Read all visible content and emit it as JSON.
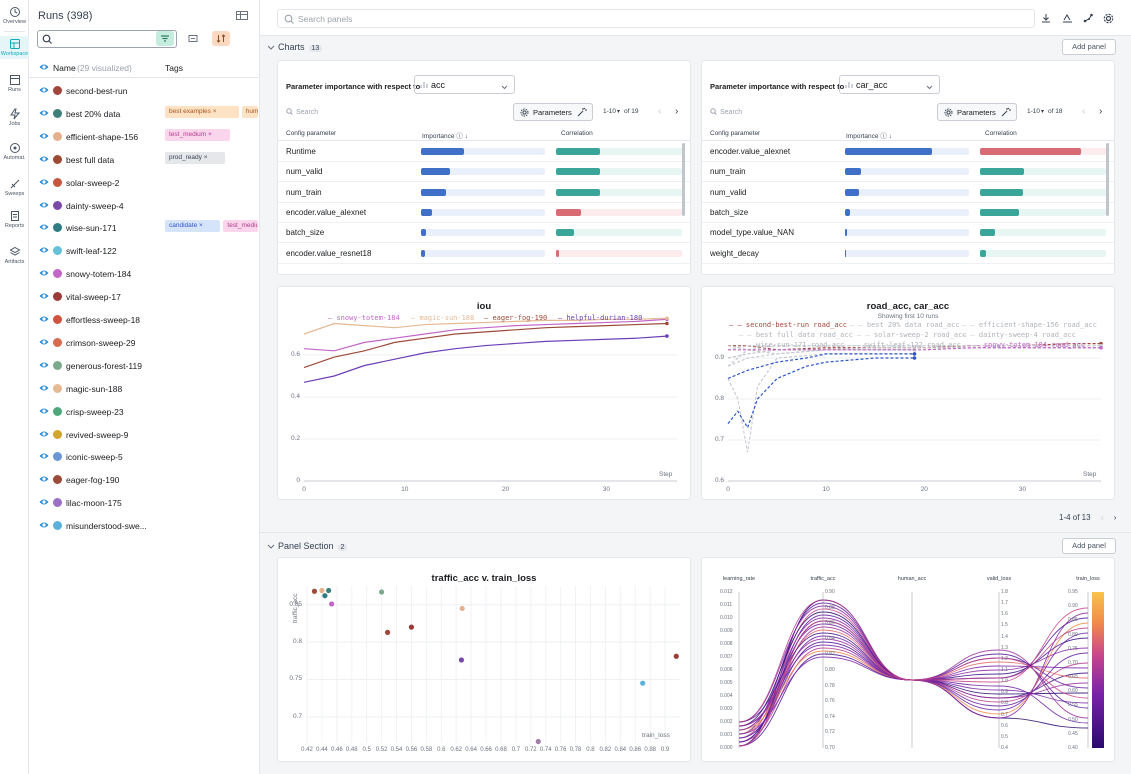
{
  "nav": [
    {
      "label": "Overview",
      "icon": "overview-icon"
    },
    {
      "label": "Workspace",
      "icon": "workspace-icon",
      "active": true
    },
    {
      "label": "Runs",
      "icon": "runs-icon"
    },
    {
      "label": "Jobs",
      "icon": "jobs-icon"
    },
    {
      "label": "Automat.",
      "icon": "automations-icon"
    },
    {
      "label": "Sweeps",
      "icon": "sweeps-icon"
    },
    {
      "label": "Reports",
      "icon": "reports-icon"
    },
    {
      "label": "Artifacts",
      "icon": "artifacts-icon"
    }
  ],
  "runs_panel": {
    "title": "Runs (398)",
    "search_value": "",
    "regex_symbol": ".*",
    "col_name": "Name",
    "col_visualized": "(29 visualized)",
    "col_tags": "Tags",
    "rows": [
      {
        "name": "second-best-run",
        "color": "#a0463c",
        "tags": []
      },
      {
        "name": "best 20% data",
        "color": "#3d7f7a",
        "tags": [
          {
            "t": "best examples",
            "c": "orange"
          },
          {
            "t": "humans",
            "c": "orange"
          }
        ]
      },
      {
        "name": "efficient-shape-156",
        "color": "#e6b08f",
        "tags": [
          {
            "t": "test_medium",
            "c": "pink"
          }
        ]
      },
      {
        "name": "best full data",
        "color": "#9c4a33",
        "tags": [
          {
            "t": "prod_ready",
            "c": "gray"
          }
        ]
      },
      {
        "name": "solar-sweep-2",
        "color": "#c8553d",
        "tags": []
      },
      {
        "name": "dainty-sweep-4",
        "color": "#7b4aa8",
        "tags": []
      },
      {
        "name": "wise-sun-171",
        "color": "#2f7c85",
        "tags": [
          {
            "t": "candidate",
            "c": "blue"
          },
          {
            "t": "test_medium",
            "c": "pink"
          }
        ]
      },
      {
        "name": "swift-leaf-122",
        "color": "#66c2d9",
        "tags": []
      },
      {
        "name": "snowy-totem-184",
        "color": "#c266c8",
        "tags": []
      },
      {
        "name": "vital-sweep-17",
        "color": "#9c3a3a",
        "tags": []
      },
      {
        "name": "effortless-sweep-18",
        "color": "#d0523f",
        "tags": []
      },
      {
        "name": "crimson-sweep-29",
        "color": "#d86b4f",
        "tags": []
      },
      {
        "name": "generous-forest-119",
        "color": "#7aaa8e",
        "tags": []
      },
      {
        "name": "magic-sun-188",
        "color": "#e5b994",
        "tags": []
      },
      {
        "name": "crisp-sweep-23",
        "color": "#4fa87c",
        "tags": []
      },
      {
        "name": "revived-sweep-9",
        "color": "#d4a52c",
        "tags": []
      },
      {
        "name": "iconic-sweep-5",
        "color": "#6b97d6",
        "tags": []
      },
      {
        "name": "eager-fog-190",
        "color": "#9c4a3a",
        "tags": []
      },
      {
        "name": "lilac-moon-175",
        "color": "#9b6fc4",
        "tags": []
      },
      {
        "name": "misunderstood-swe...",
        "color": "#5ab2dc",
        "tags": []
      }
    ]
  },
  "topbar": {
    "search_placeholder": "Search panels"
  },
  "charts_section": {
    "title": "Charts",
    "count": "13",
    "add_panel": "Add panel",
    "pagination": "1-4 of 13"
  },
  "panel_section": {
    "title": "Panel Section",
    "count": "2",
    "add_panel": "Add panel"
  },
  "param_importance": [
    {
      "title": "Parameter importance with respect to",
      "metric": "acc",
      "search_placeholder": "Search",
      "params_label": "Parameters",
      "pagination": "1-10",
      "pagination_total": "of 19",
      "col_param": "Config parameter",
      "col_importance": "Importance",
      "col_correlation": "Correlation",
      "rows": [
        {
          "param": "Runtime",
          "importance": 0.35,
          "correlation": 0.35
        },
        {
          "param": "num_valid",
          "importance": 0.23,
          "correlation": 0.35
        },
        {
          "param": "num_train",
          "importance": 0.2,
          "correlation": 0.35
        },
        {
          "param": "encoder.value_alexnet",
          "importance": 0.09,
          "correlation": -0.2
        },
        {
          "param": "batch_size",
          "importance": 0.04,
          "correlation": 0.14
        },
        {
          "param": "encoder.value_resnet18",
          "importance": 0.03,
          "correlation": -0.02
        }
      ]
    },
    {
      "title": "Parameter importance with respect to",
      "metric": "car_acc",
      "search_placeholder": "Search",
      "params_label": "Parameters",
      "pagination": "1-10",
      "pagination_total": "of 18",
      "col_param": "Config parameter",
      "col_importance": "Importance",
      "col_correlation": "Correlation",
      "rows": [
        {
          "param": "encoder.value_alexnet",
          "importance": 0.7,
          "correlation": -0.8
        },
        {
          "param": "num_train",
          "importance": 0.13,
          "correlation": 0.35
        },
        {
          "param": "num_valid",
          "importance": 0.11,
          "correlation": 0.34
        },
        {
          "param": "batch_size",
          "importance": 0.04,
          "correlation": 0.31
        },
        {
          "param": "model_type.value_NAN",
          "importance": 0.02,
          "correlation": 0.12
        },
        {
          "param": "weight_decay",
          "importance": 0.01,
          "correlation": 0.05
        }
      ]
    }
  ],
  "colors": {
    "importance": "#3f6fc7",
    "corr_pos": "#3aa69a",
    "corr_neg": "#d96b74",
    "accent": "#13a9ba"
  },
  "chart_data": [
    {
      "type": "line",
      "title": "iou",
      "xlabel": "Step",
      "xlim": [
        0,
        37
      ],
      "ylim": [
        0,
        0.8
      ],
      "xticks": [
        0,
        10,
        20,
        30
      ],
      "yticks": [
        0,
        0.2,
        0.4,
        0.6
      ],
      "series": [
        {
          "name": "snowy-totem-184",
          "color": "#c266c8",
          "x": [
            0,
            3,
            6,
            9,
            12,
            15,
            18,
            21,
            24,
            27,
            30,
            33,
            36
          ],
          "y": [
            0.63,
            0.62,
            0.66,
            0.68,
            0.7,
            0.72,
            0.73,
            0.74,
            0.745,
            0.75,
            0.755,
            0.76,
            0.77
          ]
        },
        {
          "name": "magic-sun-188",
          "color": "#e5b994",
          "x": [
            0,
            3,
            6,
            9,
            12,
            15,
            18,
            21,
            24,
            27,
            30,
            33,
            36
          ],
          "y": [
            0.7,
            0.75,
            0.74,
            0.73,
            0.745,
            0.75,
            0.755,
            0.76,
            0.765,
            0.765,
            0.77,
            0.77,
            0.775
          ]
        },
        {
          "name": "eager-fog-190",
          "color": "#9c4a3a",
          "x": [
            0,
            3,
            6,
            9,
            12,
            15,
            18,
            21,
            24,
            27,
            30,
            33,
            36
          ],
          "y": [
            0.54,
            0.59,
            0.62,
            0.66,
            0.68,
            0.7,
            0.71,
            0.72,
            0.73,
            0.735,
            0.74,
            0.745,
            0.75
          ]
        },
        {
          "name": "helpful-durian-180",
          "color": "#6a3fb8",
          "x": [
            0,
            3,
            6,
            9,
            12,
            15,
            18,
            21,
            24,
            27,
            30,
            33,
            36
          ],
          "y": [
            0.47,
            0.5,
            0.55,
            0.58,
            0.61,
            0.63,
            0.645,
            0.655,
            0.665,
            0.67,
            0.675,
            0.68,
            0.69
          ]
        }
      ]
    },
    {
      "type": "line",
      "title": "road_acc, car_acc",
      "subtitle": "Showing first 10 runs",
      "xlabel": "Step",
      "xlim": [
        0,
        38
      ],
      "ylim": [
        0.6,
        1.0
      ],
      "xticks": [
        0,
        10,
        20,
        30
      ],
      "yticks": [
        0.6,
        0.7,
        0.8,
        0.9
      ],
      "series": [
        {
          "name": "second-best-run road_acc",
          "color": "#a0463c",
          "dash": true,
          "x": [
            0,
            2,
            5,
            10,
            15,
            20,
            25,
            30,
            35,
            38
          ],
          "y": [
            0.93,
            0.93,
            0.92,
            0.925,
            0.925,
            0.925,
            0.93,
            0.93,
            0.935,
            0.935
          ]
        },
        {
          "name": "best 20% data road_acc",
          "color": "#c9cbd0",
          "dash": true,
          "x": [
            0,
            2,
            5,
            10,
            15,
            20,
            25,
            30,
            35,
            38
          ],
          "y": [
            0.92,
            0.93,
            0.93,
            0.93,
            0.93,
            0.93,
            0.93,
            0.93,
            0.93,
            0.93
          ]
        },
        {
          "name": "efficient-shape-156 road_acc",
          "color": "#c9cbd0",
          "dash": true,
          "x": [
            0,
            2,
            5,
            10,
            15,
            20,
            25,
            30,
            35,
            38
          ],
          "y": [
            0.9,
            0.91,
            0.92,
            0.92,
            0.925,
            0.925,
            0.925,
            0.925,
            0.925,
            0.925
          ]
        },
        {
          "name": "best full data road_acc",
          "color": "#c9cbd0",
          "dash": true,
          "x": [
            0,
            2,
            5,
            10,
            15,
            20,
            25,
            30,
            35,
            38
          ],
          "y": [
            0.93,
            0.92,
            0.93,
            0.93,
            0.93,
            0.93,
            0.93,
            0.93,
            0.93,
            0.93
          ]
        },
        {
          "name": "solar-sweep-2 road_acc",
          "color": "#c9cbd0",
          "dash": true,
          "x": [
            0,
            2,
            5,
            10,
            15,
            19
          ],
          "y": [
            0.88,
            0.9,
            0.91,
            0.92,
            0.92,
            0.92
          ]
        },
        {
          "name": "dainty-sweep-4 road_acc",
          "color": "#c9cbd0",
          "dash": true,
          "x": [
            0,
            2,
            5,
            10,
            15,
            19
          ],
          "y": [
            0.9,
            0.91,
            0.92,
            0.92,
            0.92,
            0.92
          ]
        },
        {
          "name": "wise-sun-171 road_acc",
          "color": "#c9cbd0",
          "dash": true,
          "x": [
            0,
            1,
            2,
            3,
            5,
            10,
            15,
            19
          ],
          "y": [
            0.85,
            0.8,
            0.67,
            0.83,
            0.9,
            0.91,
            0.91,
            0.91
          ]
        },
        {
          "name": "swift-leaf-122 road_acc",
          "color": "#c9cbd0",
          "dash": true,
          "x": [
            0,
            2,
            5,
            10,
            15,
            19
          ],
          "y": [
            0.88,
            0.92,
            0.91,
            0.92,
            0.92,
            0.92
          ]
        },
        {
          "name": "snowy-totem-184 road_acc",
          "color": "#c266c8",
          "dash": true,
          "x": [
            0,
            2,
            5,
            10,
            15,
            20,
            25,
            30,
            35,
            38
          ],
          "y": [
            0.92,
            0.92,
            0.92,
            0.92,
            0.92,
            0.92,
            0.925,
            0.925,
            0.925,
            0.925
          ]
        },
        {
          "name": "",
          "color": "#2f55c8",
          "dash": true,
          "x": [
            0,
            1,
            2,
            3,
            5,
            8,
            10,
            15,
            19
          ],
          "y": [
            0.74,
            0.77,
            0.73,
            0.8,
            0.85,
            0.88,
            0.89,
            0.9,
            0.9
          ]
        },
        {
          "name": "",
          "color": "#2f55c8",
          "dash": true,
          "x": [
            0,
            2,
            5,
            8,
            10,
            15,
            19
          ],
          "y": [
            0.85,
            0.87,
            0.89,
            0.9,
            0.91,
            0.91,
            0.91
          ]
        }
      ]
    },
    {
      "type": "scatter",
      "title": "traffic_acc v. train_loss",
      "xlabel": "train_loss",
      "ylabel": "traffic_acc",
      "xlim": [
        0.42,
        0.92
      ],
      "ylim": [
        0.665,
        0.875
      ],
      "xticks": [
        "0.42",
        "0.44",
        "0.46",
        "0.48",
        "0.5",
        "0.52",
        "0.54",
        "0.56",
        "0.58",
        "0.6",
        "0.62",
        "0.64",
        "0.66",
        "0.68",
        "0.7",
        "0.72",
        "0.74",
        "0.76",
        "0.78",
        "0.8",
        "0.82",
        "0.84",
        "0.86",
        "0.88",
        "0.9"
      ],
      "yticks": [
        "0.7",
        "0.75",
        "0.8",
        "0.85"
      ],
      "points": [
        {
          "x": 0.43,
          "y": 0.868,
          "color": "#9c4a3a"
        },
        {
          "x": 0.44,
          "y": 0.869,
          "color": "#e6b08f"
        },
        {
          "x": 0.444,
          "y": 0.862,
          "color": "#2f7c85"
        },
        {
          "x": 0.449,
          "y": 0.869,
          "color": "#3d7f7a"
        },
        {
          "x": 0.453,
          "y": 0.851,
          "color": "#c266c8"
        },
        {
          "x": 0.52,
          "y": 0.867,
          "color": "#7aaa8e"
        },
        {
          "x": 0.528,
          "y": 0.813,
          "color": "#a0463c"
        },
        {
          "x": 0.56,
          "y": 0.82,
          "color": "#9c3a3a"
        },
        {
          "x": 0.628,
          "y": 0.845,
          "color": "#e6b08f"
        },
        {
          "x": 0.627,
          "y": 0.776,
          "color": "#7b4aa8"
        },
        {
          "x": 0.73,
          "y": 0.667,
          "color": "#a37fa8"
        },
        {
          "x": 0.87,
          "y": 0.745,
          "color": "#5ab2dc"
        },
        {
          "x": 0.915,
          "y": 0.781,
          "color": "#9c3a3a"
        }
      ]
    },
    {
      "type": "parallel_coordinates",
      "axes": [
        {
          "label": "learning_rate",
          "ticks": [
            "0.000",
            "0.001",
            "0.002",
            "0.003",
            "0.004",
            "0.005",
            "0.006",
            "0.007",
            "0.008",
            "0.009",
            "0.010",
            "0.011",
            "0.012"
          ]
        },
        {
          "label": "traffic_acc",
          "ticks": [
            "0.70",
            "0.72",
            "0.74",
            "0.76",
            "0.78",
            "0.80",
            "0.82",
            "0.84",
            "0.86",
            "0.88",
            "0.90"
          ]
        },
        {
          "label": "human_acc",
          "ticks": []
        },
        {
          "label": "valid_loss",
          "ticks": [
            "0.4",
            "0.5",
            "0.6",
            "0.7",
            "0.8",
            "0.9",
            "1.0",
            "1.1",
            "1.2",
            "1.3",
            "1.4",
            "1.5",
            "1.6",
            "1.7",
            "1.8"
          ]
        },
        {
          "label": "train_loss",
          "ticks": [
            "0.40",
            "0.45",
            "0.50",
            "0.55",
            "0.60",
            "0.65",
            "0.70",
            "0.75",
            "0.80",
            "0.85",
            "0.90",
            "0.95"
          ]
        }
      ]
    }
  ]
}
